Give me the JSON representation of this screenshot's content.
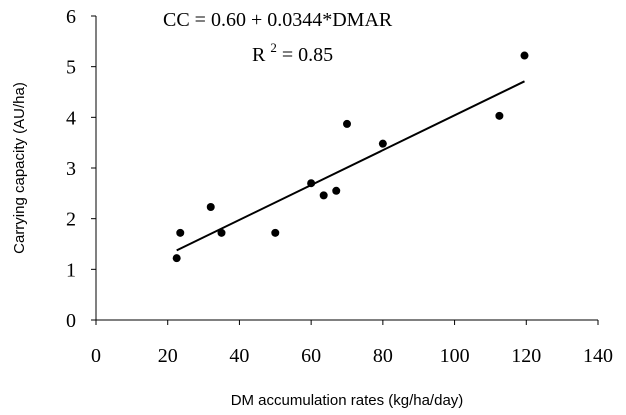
{
  "chart_data": {
    "type": "scatter",
    "title": "",
    "xlabel": "DM accumulation rates (kg/ha/day)",
    "ylabel": "Carrying capacity (AU/ha)",
    "xlim": [
      0,
      140
    ],
    "ylim": [
      0,
      6
    ],
    "x_ticks": [
      0,
      20,
      40,
      60,
      80,
      100,
      120,
      140
    ],
    "y_ticks": [
      0,
      1,
      2,
      3,
      4,
      5,
      6
    ],
    "grid": false,
    "legend": "none",
    "series": [
      {
        "type": "scatter",
        "color": "#000000",
        "points": [
          {
            "x": 22.5,
            "y": 1.22
          },
          {
            "x": 23.5,
            "y": 1.72
          },
          {
            "x": 32,
            "y": 2.23
          },
          {
            "x": 35,
            "y": 1.72
          },
          {
            "x": 50,
            "y": 1.72
          },
          {
            "x": 60,
            "y": 2.7
          },
          {
            "x": 63.5,
            "y": 2.46
          },
          {
            "x": 67,
            "y": 2.55
          },
          {
            "x": 70,
            "y": 3.87
          },
          {
            "x": 80,
            "y": 3.48
          },
          {
            "x": 112.5,
            "y": 4.03
          },
          {
            "x": 119.5,
            "y": 5.22
          }
        ]
      }
    ],
    "trendline": {
      "intercept": 0.6,
      "slope": 0.0344,
      "x_range": [
        22.5,
        119.5
      ],
      "color": "#000000"
    },
    "annotations": {
      "equation": "CC = 0.60 + 0.0344*DMAR",
      "r2_prefix": "R",
      "r2_exp": "2",
      "r2_value": " = 0.85"
    }
  }
}
